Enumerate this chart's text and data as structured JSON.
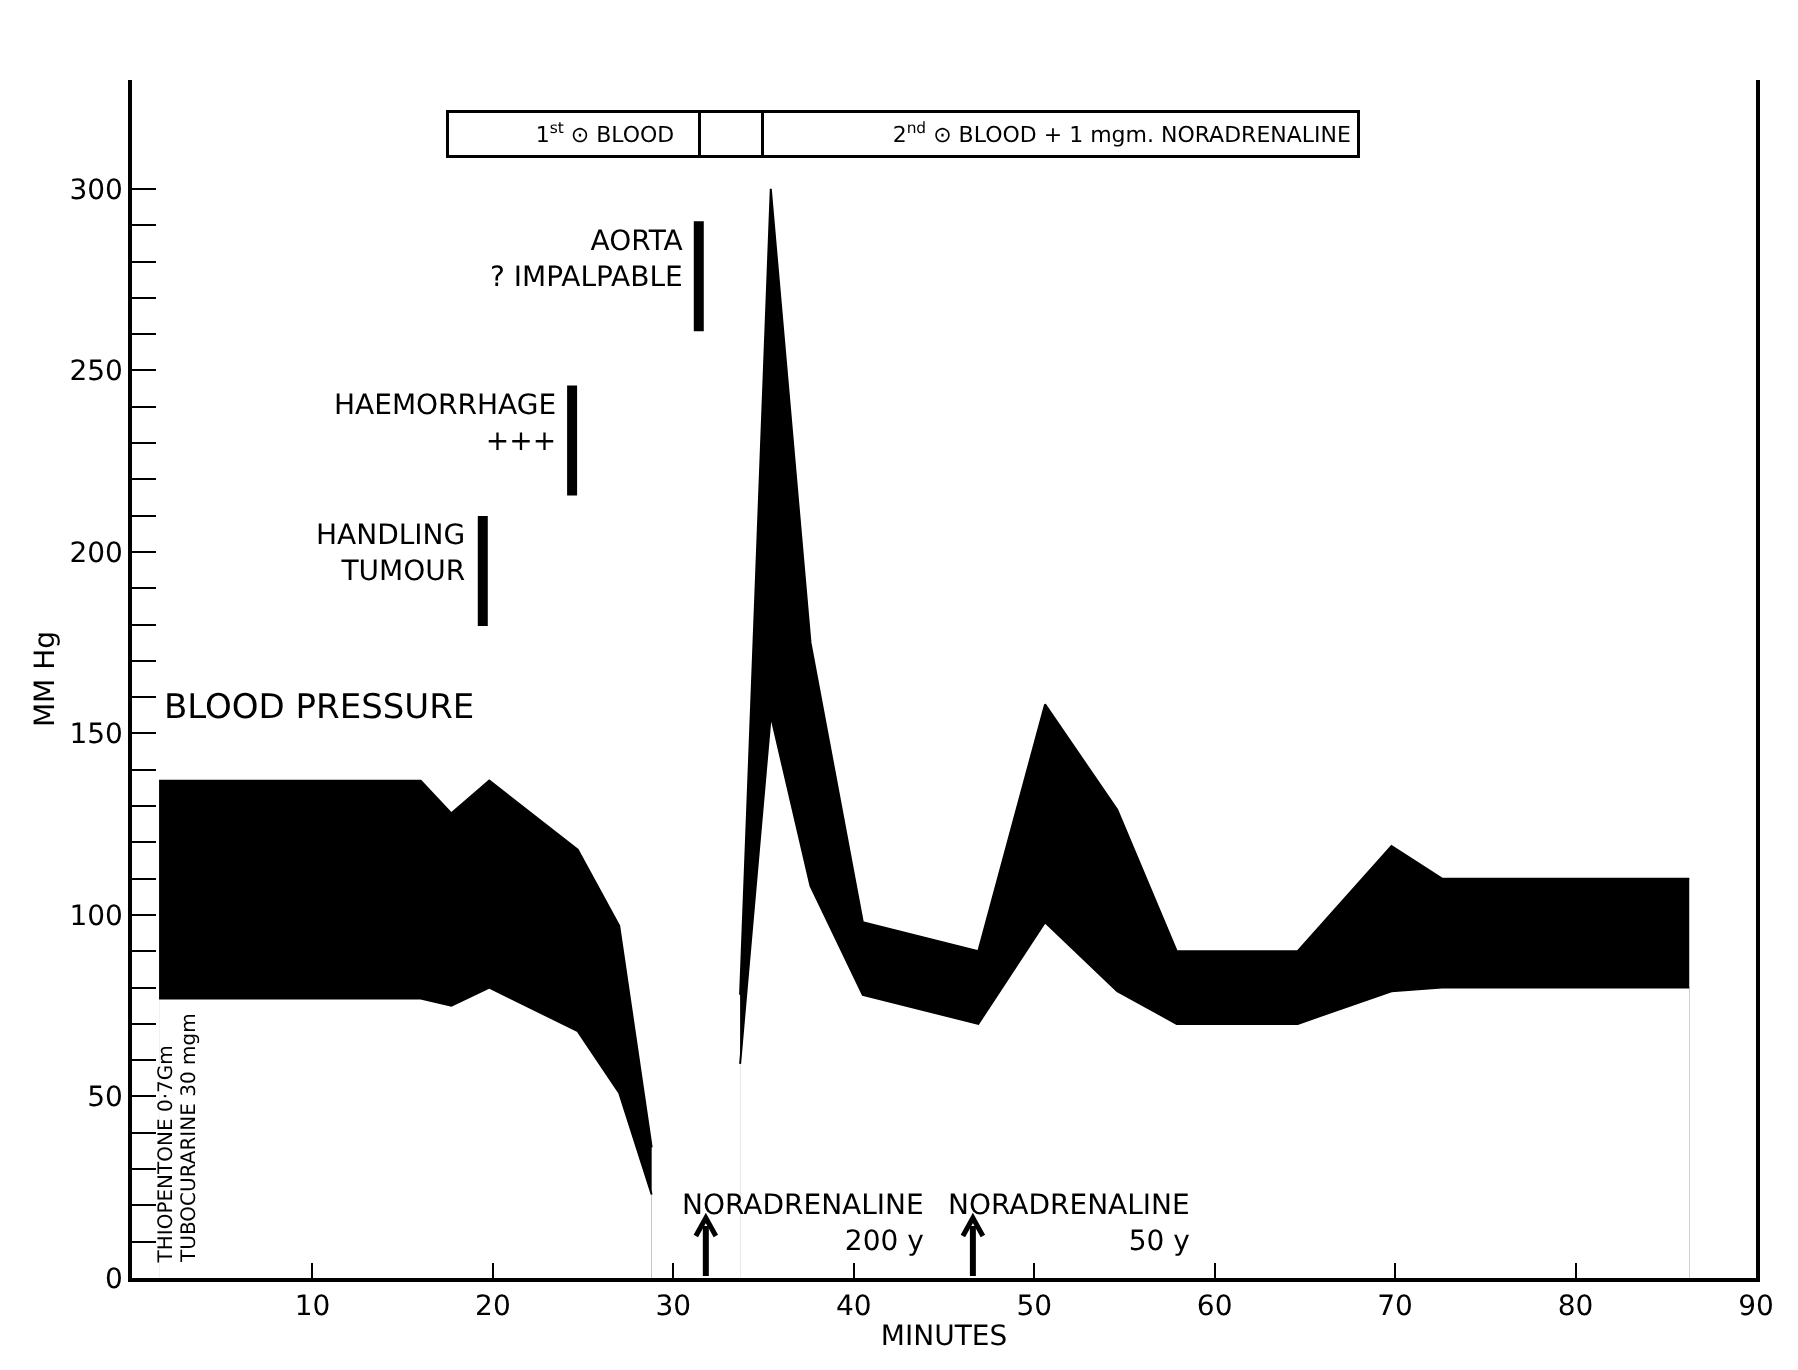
{
  "chart_data": {
    "type": "area",
    "xlabel": "MINUTES",
    "ylabel": "MM Hg",
    "x": [
      1.5,
      16,
      17.7,
      19.8,
      24.7,
      27,
      28.8,
      null,
      33.7,
      35.4,
      37.6,
      40.5,
      46.9,
      50.6,
      54.6,
      57.9,
      64.6,
      69.8,
      72.6,
      86.3
    ],
    "series": [
      {
        "color": "#000000",
        "values": [
          137,
          137,
          128,
          137,
          118,
          97,
          36,
          null,
          78,
          300,
          175,
          98,
          90,
          158,
          129,
          90,
          90,
          119,
          110,
          110
        ]
      },
      {
        "color": "#000000",
        "values": [
          77,
          77,
          75,
          80,
          68,
          51,
          23,
          null,
          59,
          155,
          108,
          78,
          70,
          98,
          79,
          70,
          70,
          79,
          80,
          80
        ]
      }
    ],
    "xlim": [
      0,
      90
    ],
    "xticks": [
      10,
      20,
      30,
      40,
      50,
      60,
      70,
      80,
      90
    ],
    "ylim": [
      0,
      330
    ],
    "yticks": [
      0,
      {
        "value": 10,
        "label": null
      },
      {
        "value": 20,
        "label": null
      },
      {
        "value": 30,
        "label": null
      },
      {
        "value": 40,
        "label": null
      },
      50,
      {
        "value": 60,
        "label": null
      },
      {
        "value": 70,
        "label": null
      },
      {
        "value": 80,
        "label": null
      },
      {
        "value": 90,
        "label": null
      },
      100,
      {
        "value": 110,
        "label": null
      },
      {
        "value": 120,
        "label": null
      },
      {
        "value": 130,
        "label": null
      },
      {
        "value": 140,
        "label": null
      },
      150,
      {
        "value": 160,
        "label": null
      },
      {
        "value": 170,
        "label": null
      },
      {
        "value": 180,
        "label": null
      },
      {
        "value": 190,
        "label": null
      },
      200,
      {
        "value": 210,
        "label": null
      },
      {
        "value": 220,
        "label": null
      },
      {
        "value": 230,
        "label": null
      },
      {
        "value": 240,
        "label": null
      },
      250,
      {
        "value": 260,
        "label": null
      },
      {
        "value": 270,
        "label": null
      },
      {
        "value": 280,
        "label": null
      },
      {
        "value": 290,
        "label": null
      },
      300
    ],
    "grid": false,
    "legend": false,
    "annotations": [
      "1$^{st}$ ⊙ BLOOD",
      "2$^{nd}$ ⊙ BLOOD + 1 mgm. NORADRENALINE",
      "AORTA\n? IMPALPABLE",
      "HAEMORRHAGE\n+++",
      "HANDLING\nTUMOUR",
      "BLOOD PRESSURE",
      "THIOPENTONE 0·7Gm",
      "TUBOCURARINE 30 mgm"
    ],
    "ref_lines": [
      {
        "axis": "x",
        "value": 31.8,
        "label": "NORADRENALINE\n200 y"
      },
      {
        "axis": "x",
        "value": 46.6,
        "label": "NORADRENALINE\n50 y"
      }
    ]
  }
}
